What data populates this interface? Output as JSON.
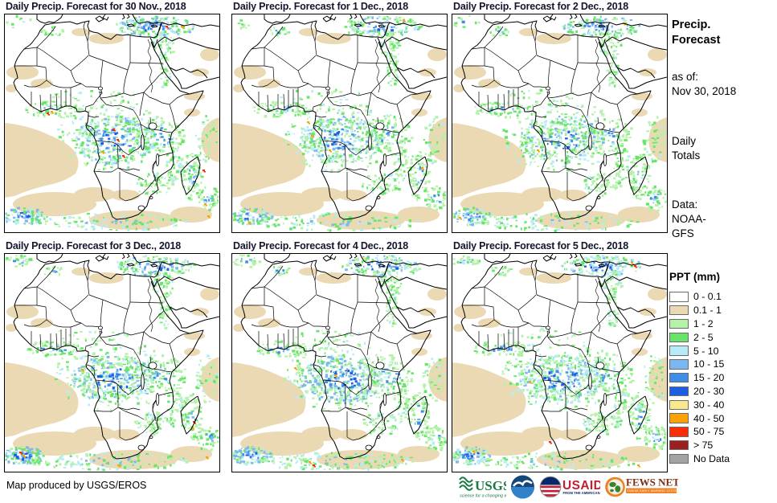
{
  "page": {
    "footer_note": "Map produced by USGS/EROS"
  },
  "panels": [
    {
      "title": "Daily Precip. Forecast for 30 Nov., 2018",
      "seed": 1
    },
    {
      "title": "Daily Precip. Forecast for 1 Dec., 2018",
      "seed": 2
    },
    {
      "title": "Daily Precip. Forecast for 2 Dec., 2018",
      "seed": 3
    },
    {
      "title": "Daily Precip. Forecast for 3 Dec., 2018",
      "seed": 4
    },
    {
      "title": "Daily Precip. Forecast for 4 Dec., 2018",
      "seed": 5
    },
    {
      "title": "Daily Precip. Forecast for 5 Dec., 2018",
      "seed": 6
    }
  ],
  "sidebar": {
    "heading": "Precip.\nForecast",
    "as_of": "as of:\nNov 30, 2018",
    "totals": "Daily\nTotals",
    "data_source": "Data:\nNOAA-\nGFS"
  },
  "legend": {
    "title": "PPT (mm)",
    "entries": [
      {
        "label": "0 - 0.1",
        "color": "#ffffff"
      },
      {
        "label": "0.1 - 1",
        "color": "#ead9b3"
      },
      {
        "label": "1 - 2",
        "color": "#b4f2aa"
      },
      {
        "label": "2 - 5",
        "color": "#66e566"
      },
      {
        "label": "5 - 10",
        "color": "#b6ecf7"
      },
      {
        "label": "10 - 15",
        "color": "#7cb8ef"
      },
      {
        "label": "15 - 20",
        "color": "#3e8ee9"
      },
      {
        "label": "20 - 30",
        "color": "#1e5fe2"
      },
      {
        "label": "30 - 40",
        "color": "#fae88d"
      },
      {
        "label": "40 - 50",
        "color": "#fda205"
      },
      {
        "label": "50 - 75",
        "color": "#fb2d07"
      },
      {
        "label": "> 75",
        "color": "#9c1e1e"
      },
      {
        "label": "No Data",
        "color": "#a3a3a3"
      }
    ]
  },
  "logos": {
    "usgs": {
      "name": "USGS",
      "tagline": "science for a changing world"
    },
    "noaa": {
      "name": "NOAA"
    },
    "usaid": {
      "name": "USAID",
      "tagline": "FROM THE AMERICAN PEOPLE"
    },
    "fews": {
      "name": "FEWS NET",
      "tagline": "FAMINE EARLY WARNING SYSTEMS NETWORK"
    }
  }
}
